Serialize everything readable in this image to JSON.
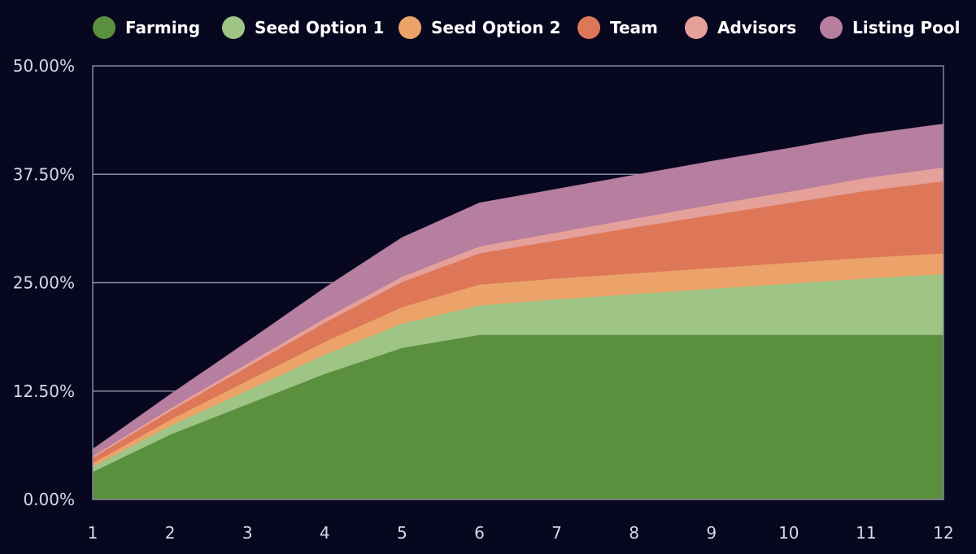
{
  "chart_data": {
    "type": "area",
    "stacked": true,
    "x": [
      "1",
      "2",
      "3",
      "4",
      "5",
      "6",
      "7",
      "8",
      "9",
      "10",
      "11",
      "12"
    ],
    "ylim": [
      0,
      50
    ],
    "yticks": [
      "0.00%",
      "12.50%",
      "25.00%",
      "37.50%",
      "50.00%"
    ],
    "legend_position": "top",
    "grid": "horizontal",
    "series": [
      {
        "name": "Farming",
        "color": "#5a8f3e",
        "values": [
          3.2,
          7.5,
          11.0,
          14.5,
          17.5,
          19.0,
          19.0,
          19.0,
          19.0,
          19.0,
          19.0,
          19.0
        ]
      },
      {
        "name": "Seed Option 1",
        "color": "#9ec586",
        "values": [
          0.6,
          1.0,
          1.6,
          2.2,
          2.8,
          3.4,
          4.1,
          4.7,
          5.3,
          5.9,
          6.5,
          7.0
        ]
      },
      {
        "name": "Seed Option 2",
        "color": "#eba369",
        "values": [
          0.4,
          0.7,
          1.1,
          1.5,
          1.9,
          2.4,
          2.4,
          2.4,
          2.4,
          2.4,
          2.4,
          2.4
        ]
      },
      {
        "name": "Team",
        "color": "#dd7758",
        "values": [
          0.6,
          1.0,
          1.6,
          2.2,
          2.9,
          3.6,
          4.4,
          5.3,
          6.1,
          6.9,
          7.7,
          8.3
        ]
      },
      {
        "name": "Advisors",
        "color": "#e5a09a",
        "values": [
          0.2,
          0.3,
          0.4,
          0.5,
          0.6,
          0.8,
          0.9,
          1.0,
          1.2,
          1.3,
          1.5,
          1.6
        ]
      },
      {
        "name": "Listing Pool",
        "color": "#b67e9f",
        "values": [
          0.8,
          1.6,
          2.5,
          3.5,
          4.5,
          5.0,
          5.0,
          5.0,
          5.0,
          5.0,
          5.0,
          5.0
        ]
      }
    ]
  }
}
